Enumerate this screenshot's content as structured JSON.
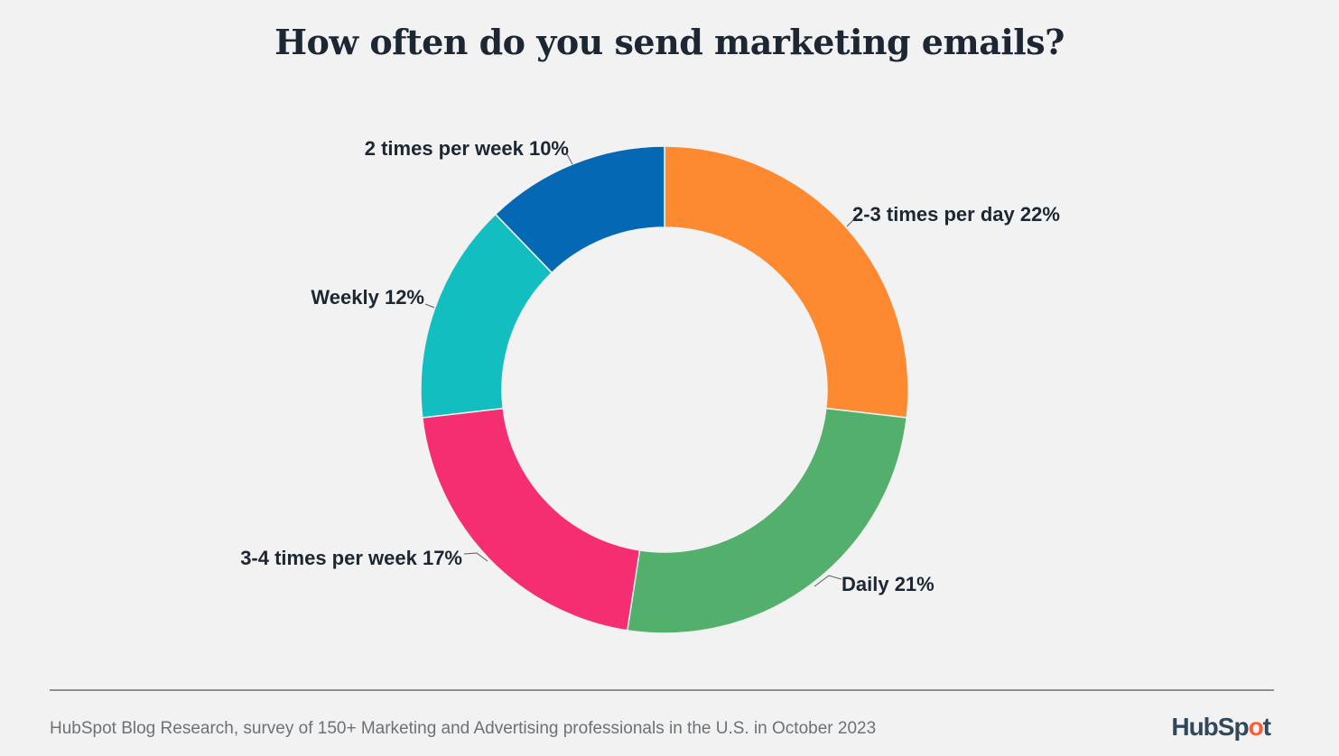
{
  "chart_data": {
    "type": "pie",
    "title": "How often do you send marketing emails?",
    "donut": true,
    "slices": [
      {
        "label": "2-3 times per day",
        "value": 22,
        "value_label": "22%",
        "color": "#fd8a30"
      },
      {
        "label": "Daily",
        "value": 21,
        "value_label": "21%",
        "color": "#52b06c"
      },
      {
        "label": "3-4 times per week",
        "value": 17,
        "value_label": "17%",
        "color": "#f52d71"
      },
      {
        "label": "Weekly",
        "value": 12,
        "value_label": "12%",
        "color": "#12bec0"
      },
      {
        "label": "2 times per week",
        "value": 10,
        "value_label": "10%",
        "color": "#0468b5"
      }
    ],
    "legend": "none",
    "labels": "outside with leader lines"
  },
  "footer": {
    "source": "HubSpot Blog Research, survey of 150+ Marketing and Advertising professionals in the U.S. in October 2023",
    "logo_text_start": "HubSp",
    "logo_text_accent": "o",
    "logo_text_end": "t"
  }
}
